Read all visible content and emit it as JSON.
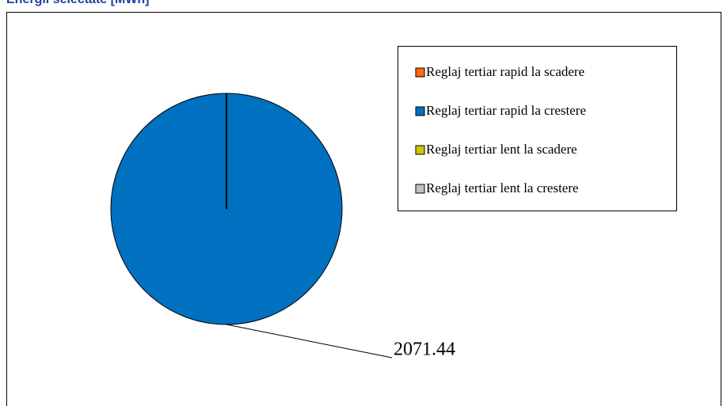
{
  "chart_data": {
    "type": "pie",
    "title": "Energii selectate [MWh]",
    "categories": [
      "Reglaj tertiar rapid la scadere",
      "Reglaj tertiar rapid la crestere",
      "Reglaj tertiar lent la scadere",
      "Reglaj tertiar lent la crestere"
    ],
    "values": [
      0,
      2071.44,
      0,
      0
    ],
    "colors": [
      "#ff6a13",
      "#0070c0",
      "#c8c800",
      "#c0c0c0"
    ],
    "legend": "right"
  }
}
